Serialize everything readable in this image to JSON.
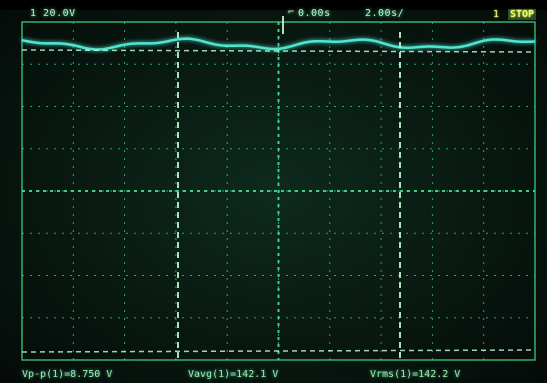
{
  "header": {
    "channel_scale": "1 20.0V",
    "time_offset": "0.00s",
    "time_per_div": "2.00s/",
    "channel_indicator": "1",
    "run_state": "STOP"
  },
  "measurements": [
    {
      "label": "Vp-p(1)=8.750 V"
    },
    {
      "label": "Vavg(1)=142.1 V"
    },
    {
      "label": "Vrms(1)=142.2 V"
    }
  ],
  "colors": {
    "grid": "#3fd88a",
    "trace": "#4fe6d0",
    "cursor": "#bff5d0"
  }
}
